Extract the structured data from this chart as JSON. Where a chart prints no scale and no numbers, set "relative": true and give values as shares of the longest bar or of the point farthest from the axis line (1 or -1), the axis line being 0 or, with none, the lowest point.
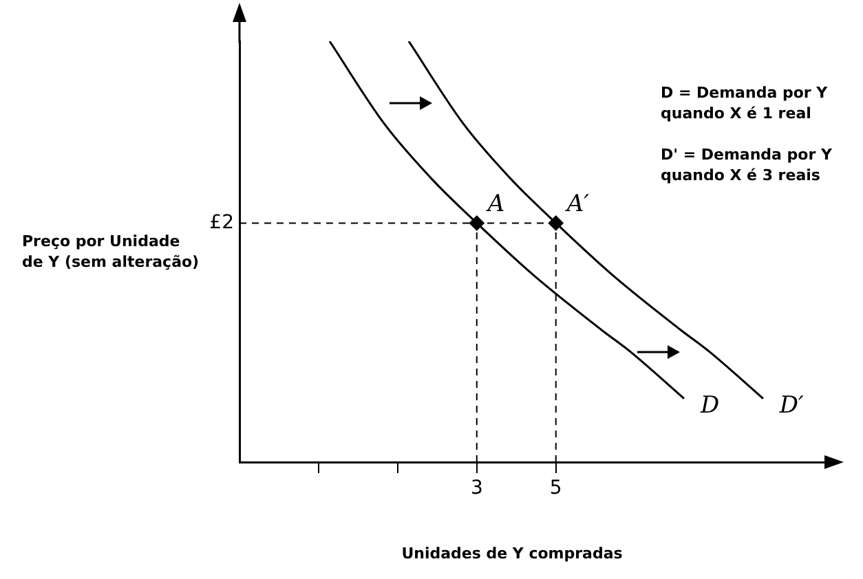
{
  "chart_data": {
    "type": "line",
    "xlabel": "Unidades de Y compradas",
    "ylabel": "Preço por Unidade\nde Y (sem alteração)",
    "annotations": [
      "£2",
      "D = Demanda por Y\nquando X é 1 real",
      "D' = Demanda por Y\nquando X é 3 reais"
    ],
    "xlim": [
      -3,
      12
    ],
    "xticks": [
      {
        "value": -1,
        "label": null
      },
      {
        "value": 1,
        "label": null
      },
      3,
      5
    ],
    "relative": true,
    "grid": false,
    "legend": false,
    "ref_lines": [
      {
        "axis": "y",
        "value": 0.568,
        "line_style": "dashed"
      },
      {
        "axis": "x",
        "value": 3,
        "line_style": "dashed"
      },
      {
        "axis": "x",
        "value": 5,
        "line_style": "dashed"
      }
    ],
    "series": [
      {
        "name": "D",
        "color": "#000000",
        "marker": "none",
        "x": [
          -0.72,
          0.66,
          1.86,
          3,
          4.45,
          6.17,
          6.86,
          8.24
        ],
        "values": [
          1,
          0.804,
          0.673,
          0.568,
          0.443,
          0.313,
          0.264,
          0.151
        ]
      },
      {
        "name": "D′",
        "color": "#000000",
        "marker": "none",
        "x": [
          1.28,
          2.66,
          3.86,
          5,
          6.45,
          8.17,
          8.86,
          10.24
        ],
        "values": [
          1,
          0.804,
          0.673,
          0.568,
          0.443,
          0.313,
          0.264,
          0.151
        ]
      },
      {
        "name": "A",
        "type": "scatter",
        "color": "#000000",
        "marker": "diamond",
        "x": [
          3
        ],
        "values": [
          0.568
        ]
      },
      {
        "name": "A′",
        "type": "scatter",
        "color": "#000000",
        "marker": "diamond",
        "x": [
          5
        ],
        "values": [
          0.568
        ]
      }
    ]
  }
}
